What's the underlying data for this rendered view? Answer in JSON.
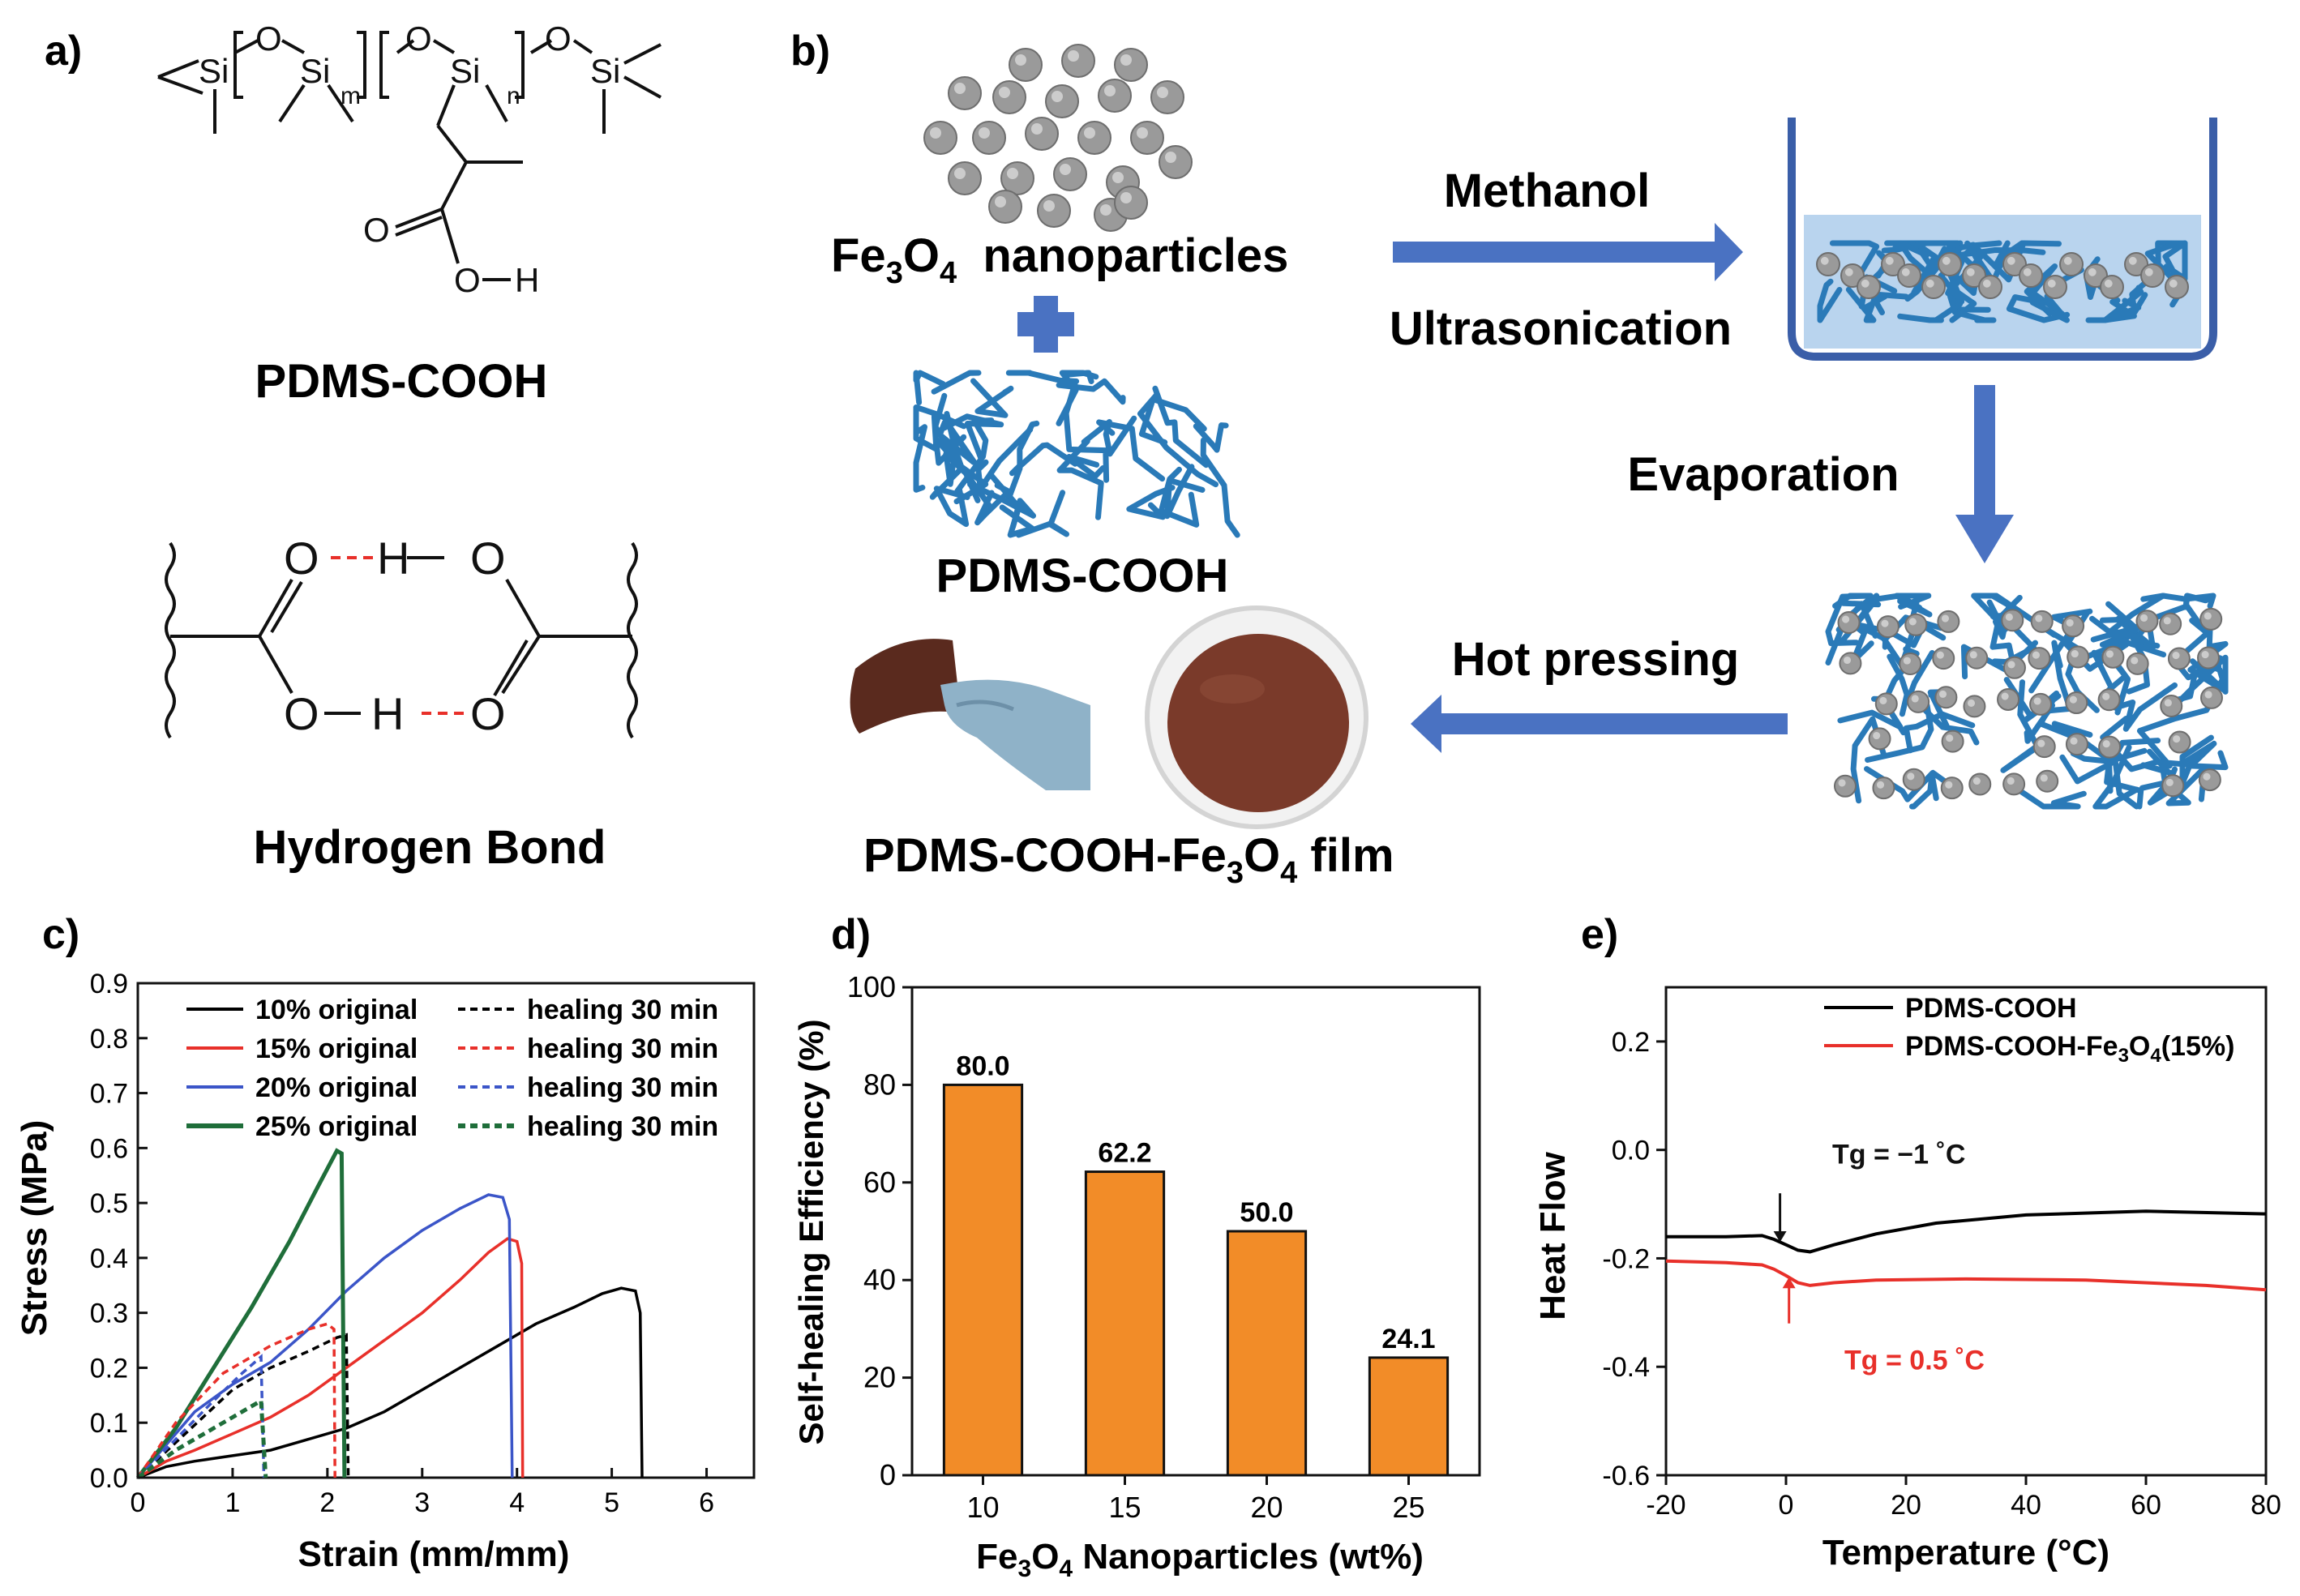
{
  "panels": {
    "a": {
      "label": "a)",
      "structure": {
        "atoms": {
          "si": "Si",
          "o": "O",
          "h": "H"
        },
        "subscripts": {
          "m": "m",
          "n": "n"
        }
      },
      "name": "PDMS-COOH",
      "hbond": {
        "o": "O",
        "h": "H"
      },
      "hbond_title": "Hydrogen Bond"
    },
    "b": {
      "label": "b)",
      "fe3o4": {
        "fe": "Fe",
        "s3": "3",
        "o": "O",
        "s4": "4",
        "rest": "  nanoparticles"
      },
      "pdms_label": "PDMS-COOH",
      "steps": {
        "methanol": "Methanol",
        "ultrasonication": "Ultrasonication",
        "evaporation": "Evaporation",
        "hot_pressing": "Hot pressing"
      },
      "film": {
        "pre": "PDMS-COOH-Fe",
        "s3": "3",
        "o": "O",
        "s4": "4",
        "post": " film"
      },
      "colors": {
        "arrow": "#4a72c2",
        "polymer": "#2a7ab8",
        "particle": "#9a9a9a",
        "film": "#7a3a2a",
        "solvent": "#b9d4ee"
      }
    }
  },
  "chart_data": [
    {
      "id": "c",
      "label": "c)",
      "type": "line",
      "xlabel": "Strain (mm/mm)",
      "ylabel": "Stress (MPa)",
      "xlim": [
        0,
        6.5
      ],
      "ylim": [
        0,
        0.9
      ],
      "xticks": [
        "0",
        "1",
        "2",
        "3",
        "4",
        "5",
        "6"
      ],
      "yticks": [
        "0.0",
        "0.1",
        "0.2",
        "0.3",
        "0.4",
        "0.5",
        "0.6",
        "0.7",
        "0.8",
        "0.9"
      ],
      "legend_position": "top-left",
      "series": [
        {
          "name": "10% original",
          "color": "#000000",
          "dash": false,
          "x": [
            0,
            0.3,
            0.6,
            1.0,
            1.4,
            1.8,
            2.2,
            2.6,
            3.0,
            3.4,
            3.8,
            4.2,
            4.6,
            4.9,
            5.1,
            5.25,
            5.3,
            5.32
          ],
          "y": [
            0,
            0.02,
            0.03,
            0.04,
            0.05,
            0.07,
            0.09,
            0.12,
            0.16,
            0.2,
            0.24,
            0.28,
            0.31,
            0.335,
            0.345,
            0.34,
            0.3,
            0
          ]
        },
        {
          "name": "15% original",
          "color": "#e8302a",
          "dash": false,
          "x": [
            0,
            0.3,
            0.6,
            1.0,
            1.4,
            1.8,
            2.2,
            2.6,
            3.0,
            3.4,
            3.7,
            3.9,
            4.0,
            4.05,
            4.06
          ],
          "y": [
            0,
            0.03,
            0.05,
            0.08,
            0.11,
            0.15,
            0.2,
            0.25,
            0.3,
            0.36,
            0.41,
            0.435,
            0.43,
            0.39,
            0
          ]
        },
        {
          "name": "20% original",
          "color": "#3b55c8",
          "dash": false,
          "x": [
            0,
            0.3,
            0.6,
            1.0,
            1.4,
            1.8,
            2.2,
            2.6,
            3.0,
            3.4,
            3.7,
            3.85,
            3.92,
            3.95
          ],
          "y": [
            0,
            0.06,
            0.12,
            0.17,
            0.21,
            0.27,
            0.34,
            0.4,
            0.45,
            0.49,
            0.515,
            0.51,
            0.47,
            0
          ]
        },
        {
          "name": "25% original",
          "color": "#1f6e3a",
          "dash": false,
          "x": [
            0,
            0.4,
            0.8,
            1.2,
            1.6,
            1.9,
            2.1,
            2.15,
            2.18
          ],
          "y": [
            0,
            0.09,
            0.2,
            0.31,
            0.43,
            0.53,
            0.595,
            0.59,
            0
          ]
        },
        {
          "name": "healing 30 min",
          "color": "#000000",
          "dash": true,
          "x": [
            0,
            0.5,
            1.0,
            1.4,
            1.8,
            2.1,
            2.2,
            2.22
          ],
          "y": [
            0,
            0.08,
            0.16,
            0.2,
            0.23,
            0.255,
            0.26,
            0
          ]
        },
        {
          "name": "healing 30 min",
          "color": "#e8302a",
          "dash": true,
          "x": [
            0,
            0.4,
            0.9,
            1.4,
            1.8,
            2.0,
            2.07,
            2.08
          ],
          "y": [
            0,
            0.1,
            0.19,
            0.24,
            0.27,
            0.28,
            0.27,
            0
          ]
        },
        {
          "name": "healing 30 min",
          "color": "#3b55c8",
          "dash": true,
          "x": [
            0,
            0.4,
            0.8,
            1.1,
            1.3,
            1.33
          ],
          "y": [
            0,
            0.07,
            0.14,
            0.19,
            0.22,
            0
          ]
        },
        {
          "name": "healing 30 min",
          "color": "#1f6e3a",
          "dash": true,
          "x": [
            0,
            0.4,
            0.8,
            1.1,
            1.3,
            1.35
          ],
          "y": [
            0,
            0.05,
            0.09,
            0.12,
            0.14,
            0
          ]
        }
      ]
    },
    {
      "id": "d",
      "label": "d)",
      "type": "bar",
      "categories": [
        "10",
        "15",
        "20",
        "25"
      ],
      "values": [
        80.0,
        62.2,
        50.0,
        24.1
      ],
      "value_labels": [
        "80.0",
        "62.2",
        "50.0",
        "24.1"
      ],
      "color": "#f28c28",
      "xlabel": {
        "pre": "Fe",
        "s3": "3",
        "o": "O",
        "s4": "4",
        "post": " Nanoparticles (wt%)"
      },
      "ylabel": "Self-healing Efficiency (%)",
      "ylim": [
        0,
        100
      ],
      "yticks": [
        "0",
        "20",
        "40",
        "60",
        "80",
        "100"
      ]
    },
    {
      "id": "e",
      "label": "e)",
      "type": "line",
      "xlabel": "Temperature (°C)",
      "ylabel": "Heat Flow",
      "xlim": [
        -20,
        80
      ],
      "ylim": [
        -0.6,
        0.3
      ],
      "xticks": [
        "-20",
        "0",
        "20",
        "40",
        "60",
        "80"
      ],
      "yticks": [
        "0.2",
        "0.0",
        "-0.2",
        "-0.4",
        "-0.6"
      ],
      "legend_position": "top-right",
      "series": [
        {
          "name": "PDMS-COOH",
          "color": "#000000",
          "x": [
            -20,
            -10,
            -4,
            -2,
            0,
            2,
            4,
            8,
            15,
            25,
            40,
            60,
            80
          ],
          "y": [
            -0.16,
            -0.16,
            -0.158,
            -0.165,
            -0.175,
            -0.185,
            -0.188,
            -0.175,
            -0.155,
            -0.135,
            -0.12,
            -0.113,
            -0.118
          ],
          "tg_label": "Tg = −1 ˚C",
          "tg_x": -1
        },
        {
          "name_parts": {
            "pre": "PDMS-COOH-Fe",
            "s3": "3",
            "o": "O",
            "s4": "4",
            "post": "(15%)"
          },
          "color": "#e8302a",
          "x": [
            -20,
            -10,
            -4,
            -2,
            0,
            2,
            4,
            8,
            15,
            30,
            50,
            70,
            80
          ],
          "y": [
            -0.205,
            -0.208,
            -0.212,
            -0.22,
            -0.232,
            -0.245,
            -0.25,
            -0.245,
            -0.24,
            -0.238,
            -0.24,
            -0.25,
            -0.258
          ],
          "tg_label": "Tg = 0.5 ˚C",
          "tg_x": 0.5
        }
      ]
    }
  ]
}
